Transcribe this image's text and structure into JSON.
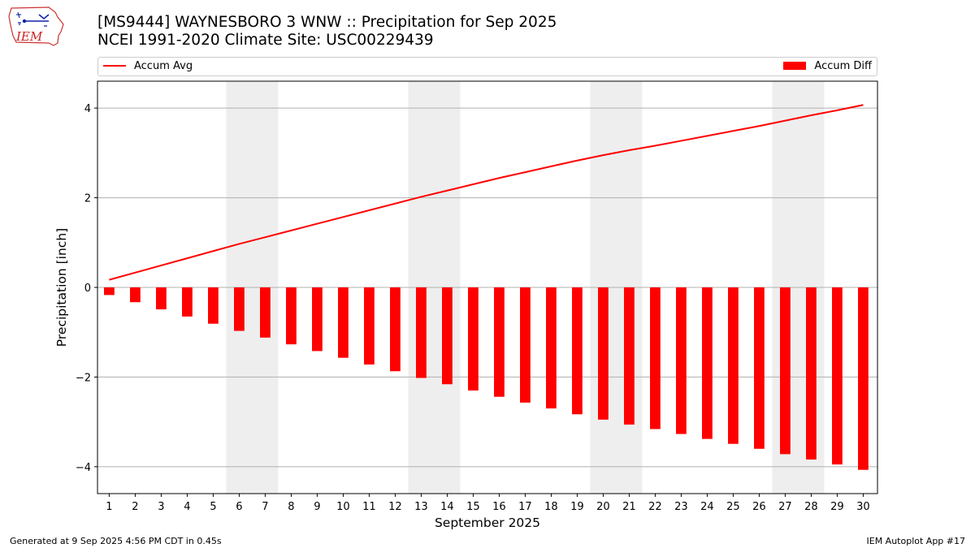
{
  "header": {
    "title_line1": "[MS9444] WAYNESBORO 3 WNW :: Precipitation for Sep 2025",
    "title_line2": "NCEI 1991-2020 Climate Site: USC00229439",
    "logo_text": "IEM"
  },
  "legend": {
    "line_label": "Accum Avg",
    "bar_label": "Accum Diff"
  },
  "footer": {
    "left": "Generated at 9 Sep 2025 4:56 PM CDT in 0.45s",
    "right": "IEM Autoplot App #17"
  },
  "colors": {
    "series": "#ff0000",
    "weekend_band": "#eeeeee",
    "grid": "#b0b0b0"
  },
  "chart_data": {
    "type": "bar",
    "xlabel": "September 2025",
    "ylabel": "Precipitation [inch]",
    "ylim": [
      -4.6,
      4.6
    ],
    "yticks": [
      4,
      2,
      0,
      -2,
      -4
    ],
    "ytick_labels": [
      "4",
      "2",
      "0",
      "−2",
      "−4"
    ],
    "grid": "horizontal",
    "legend_placement": "top, outside plot",
    "x": [
      1,
      2,
      3,
      4,
      5,
      6,
      7,
      8,
      9,
      10,
      11,
      12,
      13,
      14,
      15,
      16,
      17,
      18,
      19,
      20,
      21,
      22,
      23,
      24,
      25,
      26,
      27,
      28,
      29,
      30
    ],
    "shaded_days": [
      [
        6,
        7
      ],
      [
        13,
        14
      ],
      [
        20,
        21
      ],
      [
        27,
        28
      ]
    ],
    "series": [
      {
        "name": "Accum Avg",
        "kind": "line",
        "values": [
          0.17,
          0.33,
          0.49,
          0.65,
          0.81,
          0.97,
          1.12,
          1.27,
          1.42,
          1.57,
          1.72,
          1.87,
          2.02,
          2.16,
          2.3,
          2.44,
          2.57,
          2.7,
          2.83,
          2.95,
          3.06,
          3.16,
          3.27,
          3.38,
          3.49,
          3.6,
          3.72,
          3.84,
          3.95,
          4.07
        ]
      },
      {
        "name": "Accum Diff",
        "kind": "bar",
        "values": [
          -0.17,
          -0.33,
          -0.49,
          -0.65,
          -0.81,
          -0.97,
          -1.12,
          -1.27,
          -1.42,
          -1.57,
          -1.72,
          -1.87,
          -2.02,
          -2.16,
          -2.3,
          -2.44,
          -2.57,
          -2.7,
          -2.83,
          -2.95,
          -3.06,
          -3.16,
          -3.27,
          -3.38,
          -3.49,
          -3.6,
          -3.72,
          -3.84,
          -3.95,
          -4.07
        ]
      }
    ]
  }
}
